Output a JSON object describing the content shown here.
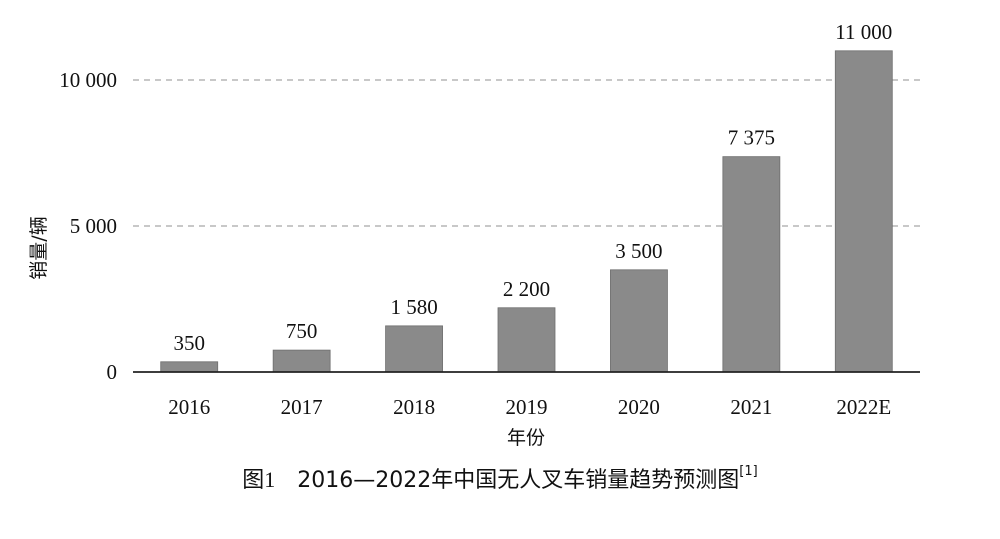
{
  "caption": {
    "figure_number": "图1",
    "text": "2016—2022年中国无人叉车销量趋势预测图",
    "reference": "[1]"
  },
  "chart_data": {
    "type": "bar",
    "categories": [
      "2016",
      "2017",
      "2018",
      "2019",
      "2020",
      "2021",
      "2022E"
    ],
    "values": [
      350,
      750,
      1580,
      2200,
      3500,
      7375,
      11000
    ],
    "data_labels": [
      "350",
      "750",
      "1 580",
      "2 200",
      "3 500",
      "7 375",
      "11 000"
    ],
    "xlabel": "年份",
    "ylabel": "销量/辆",
    "ylim": [
      0,
      11000
    ],
    "yticks": [
      0,
      5000,
      10000
    ],
    "ytick_labels": [
      "0",
      "5 000",
      "10 000"
    ],
    "grid": "horizontal dashed at 5 000 and 10 000",
    "bar_color": "#8a8a8a",
    "grid_color": "#b5b5b5",
    "axis_color": "#222222"
  }
}
